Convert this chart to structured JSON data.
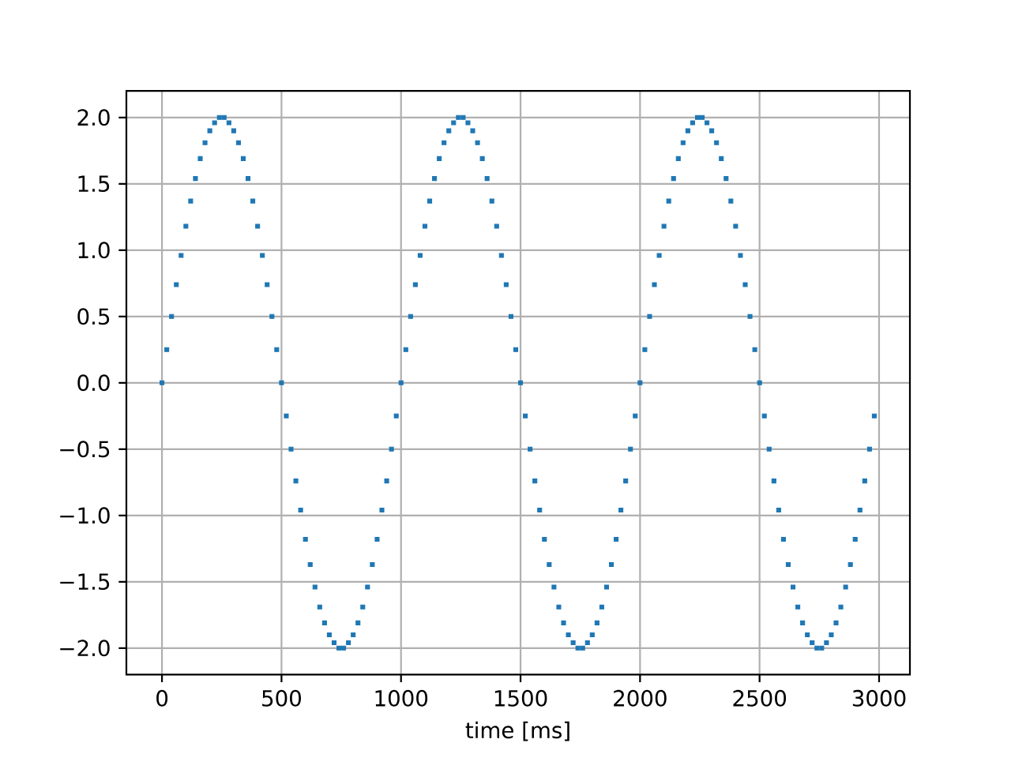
{
  "chart_data": {
    "type": "scatter",
    "xlabel": "time [ms]",
    "color": "#1f77b4",
    "marker": "square",
    "grid": true,
    "xlim": [
      -149,
      3129
    ],
    "ylim": [
      -2.2,
      2.2
    ],
    "xticks": [
      0,
      500,
      1000,
      1500,
      2000,
      2500,
      3000
    ],
    "yticks": [
      {
        "value": -2,
        "label": "−2.0"
      },
      {
        "value": -1.5,
        "label": "−1.5"
      },
      {
        "value": -1,
        "label": "−1.0"
      },
      {
        "value": -0.5,
        "label": "−0.5"
      },
      {
        "value": 0,
        "label": "0.0"
      },
      {
        "value": 0.5,
        "label": "0.5"
      },
      {
        "value": 1,
        "label": "1.0"
      },
      {
        "value": 1.5,
        "label": "1.5"
      },
      {
        "value": 2,
        "label": "2.0"
      }
    ],
    "x": [
      0,
      20,
      40,
      60,
      80,
      100,
      120,
      140,
      160,
      180,
      200,
      220,
      240,
      260,
      280,
      300,
      320,
      340,
      360,
      380,
      400,
      420,
      440,
      460,
      480,
      500,
      520,
      540,
      560,
      580,
      600,
      620,
      640,
      660,
      680,
      700,
      720,
      740,
      760,
      780,
      800,
      820,
      840,
      860,
      880,
      900,
      920,
      940,
      960,
      980,
      1000,
      1020,
      1040,
      1060,
      1080,
      1100,
      1120,
      1140,
      1160,
      1180,
      1200,
      1220,
      1240,
      1260,
      1280,
      1300,
      1320,
      1340,
      1360,
      1380,
      1400,
      1420,
      1440,
      1460,
      1480,
      1500,
      1520,
      1540,
      1560,
      1580,
      1600,
      1620,
      1640,
      1660,
      1680,
      1700,
      1720,
      1740,
      1760,
      1780,
      1800,
      1820,
      1840,
      1860,
      1880,
      1900,
      1920,
      1940,
      1960,
      1980,
      2000,
      2020,
      2040,
      2060,
      2080,
      2100,
      2120,
      2140,
      2160,
      2180,
      2200,
      2220,
      2240,
      2260,
      2280,
      2300,
      2320,
      2340,
      2360,
      2380,
      2400,
      2420,
      2440,
      2460,
      2480,
      2500,
      2520,
      2540,
      2560,
      2580,
      2600,
      2620,
      2640,
      2660,
      2680,
      2700,
      2720,
      2740,
      2760,
      2780,
      2800,
      2820,
      2840,
      2860,
      2880,
      2900,
      2920,
      2940,
      2960,
      2980
    ],
    "values": [
      0,
      0.25,
      0.5,
      0.74,
      0.96,
      1.18,
      1.37,
      1.54,
      1.69,
      1.81,
      1.9,
      1.96,
      2,
      2,
      1.96,
      1.9,
      1.81,
      1.69,
      1.54,
      1.37,
      1.18,
      0.96,
      0.74,
      0.5,
      0.25,
      0,
      -0.25,
      -0.5,
      -0.74,
      -0.96,
      -1.18,
      -1.37,
      -1.54,
      -1.69,
      -1.81,
      -1.9,
      -1.96,
      -2,
      -2,
      -1.96,
      -1.9,
      -1.81,
      -1.69,
      -1.54,
      -1.37,
      -1.18,
      -0.96,
      -0.74,
      -0.5,
      -0.25,
      0,
      0.25,
      0.5,
      0.74,
      0.96,
      1.18,
      1.37,
      1.54,
      1.69,
      1.81,
      1.9,
      1.96,
      2,
      2,
      1.96,
      1.9,
      1.81,
      1.69,
      1.54,
      1.37,
      1.18,
      0.96,
      0.74,
      0.5,
      0.25,
      0,
      -0.25,
      -0.5,
      -0.74,
      -0.96,
      -1.18,
      -1.37,
      -1.54,
      -1.69,
      -1.81,
      -1.9,
      -1.96,
      -2,
      -2,
      -1.96,
      -1.9,
      -1.81,
      -1.69,
      -1.54,
      -1.37,
      -1.18,
      -0.96,
      -0.74,
      -0.5,
      -0.25,
      0,
      0.25,
      0.5,
      0.74,
      0.96,
      1.18,
      1.37,
      1.54,
      1.69,
      1.81,
      1.9,
      1.96,
      2,
      2,
      1.96,
      1.9,
      1.81,
      1.69,
      1.54,
      1.37,
      1.18,
      0.96,
      0.74,
      0.5,
      0.25,
      0,
      -0.25,
      -0.5,
      -0.74,
      -0.96,
      -1.18,
      -1.37,
      -1.54,
      -1.69,
      -1.81,
      -1.9,
      -1.96,
      -2,
      -2,
      -1.96,
      -1.9,
      -1.81,
      -1.69,
      -1.54,
      -1.37,
      -1.18,
      -0.96,
      -0.74,
      -0.5,
      -0.25
    ]
  }
}
